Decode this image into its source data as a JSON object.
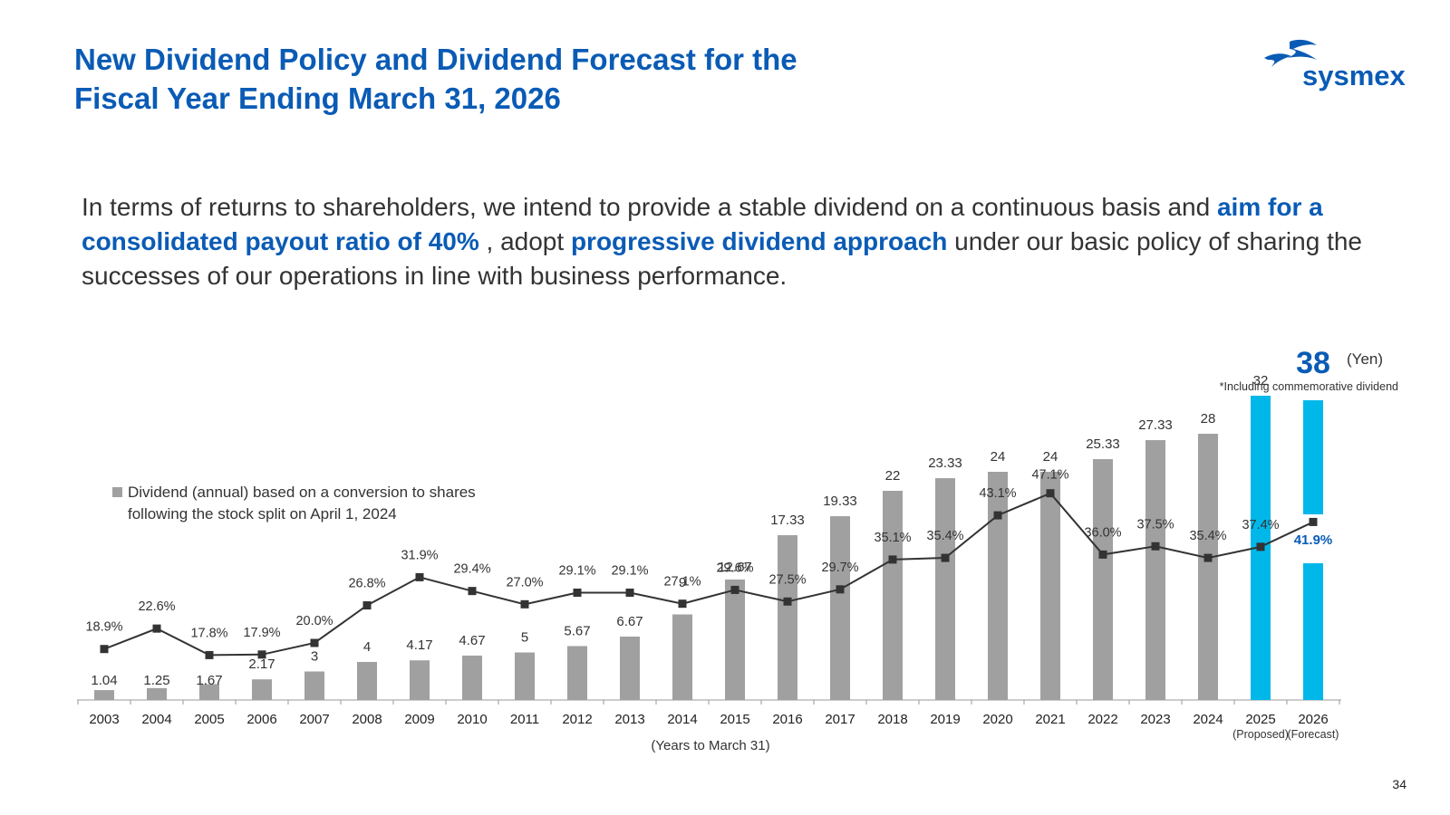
{
  "slide": {
    "title_line1": "New Dividend Policy and Dividend Forecast for the",
    "title_line2": "Fiscal Year Ending March 31, 2026",
    "logo_text": "sysmex",
    "body_part1": "In terms of returns to shareholders, we intend to provide a stable dividend on a continuous basis and",
    "body_highlight1": "aim for a consolidated payout ratio of 40%",
    "body_part2": ", adopt",
    "body_highlight2": "progressive dividend approach",
    "body_part3": "under our basic policy of sharing the successes of our operations in line with business performance.",
    "page_number": "34",
    "accent_color": "#0a5bb5"
  },
  "chart_data": {
    "type": "bar",
    "unit_label": "(Yen)",
    "headline_value": "38",
    "note": "*Including commemorative dividend",
    "legend_line1": "Dividend (annual) based on a conversion to shares",
    "legend_line2": "following the stock split on April 1, 2024",
    "xlabel": "(Years to March 31)",
    "categories": [
      "2003",
      "2004",
      "2005",
      "2006",
      "2007",
      "2008",
      "2009",
      "2010",
      "2011",
      "2012",
      "2013",
      "2014",
      "2015",
      "2016",
      "2017",
      "2018",
      "2019",
      "2020",
      "2021",
      "2022",
      "2023",
      "2024",
      "2025",
      "2026"
    ],
    "sublabels": {
      "2025": "(Proposed)",
      "2026": "(Forecast)"
    },
    "series": [
      {
        "name": "Dividend (annual)",
        "type": "bar",
        "values": [
          1.04,
          1.25,
          1.67,
          2.17,
          3,
          4,
          4.17,
          4.67,
          5,
          5.67,
          6.67,
          9,
          12.67,
          17.33,
          19.33,
          22,
          23.33,
          24,
          24,
          25.33,
          27.33,
          28,
          32,
          38
        ],
        "labels": [
          "1.04",
          "1.25",
          "1.67",
          "2.17",
          "3",
          "4",
          "4.17",
          "4.67",
          "5",
          "5.67",
          "6.67",
          "9",
          "12.67",
          "17.33",
          "19.33",
          "22",
          "23.33",
          "24",
          "24",
          "25.33",
          "27.33",
          "28",
          "32",
          "38"
        ],
        "color": "#a0a0a0",
        "highlight_color": "#00b7ea"
      },
      {
        "name": "Consolidated payout ratio",
        "type": "line",
        "values": [
          18.9,
          22.6,
          17.8,
          17.9,
          20.0,
          26.8,
          31.9,
          29.4,
          27.0,
          29.1,
          29.1,
          27.1,
          29.6,
          27.5,
          29.7,
          35.1,
          35.4,
          43.1,
          47.1,
          36.0,
          37.5,
          35.4,
          37.4,
          41.9
        ],
        "labels": [
          "18.9%",
          "22.6%",
          "17.8%",
          "17.9%",
          "20.0%",
          "26.8%",
          "31.9%",
          "29.4%",
          "27.0%",
          "29.1%",
          "29.1%",
          "27.1%",
          "29.6%",
          "27.5%",
          "29.7%",
          "35.1%",
          "35.4%",
          "43.1%",
          "47.1%",
          "36.0%",
          "37.5%",
          "35.4%",
          "37.4%",
          "41.9%"
        ],
        "color": "#333333"
      }
    ],
    "ylim": [
      0,
      38
    ],
    "y2lim": [
      0,
      100
    ]
  }
}
